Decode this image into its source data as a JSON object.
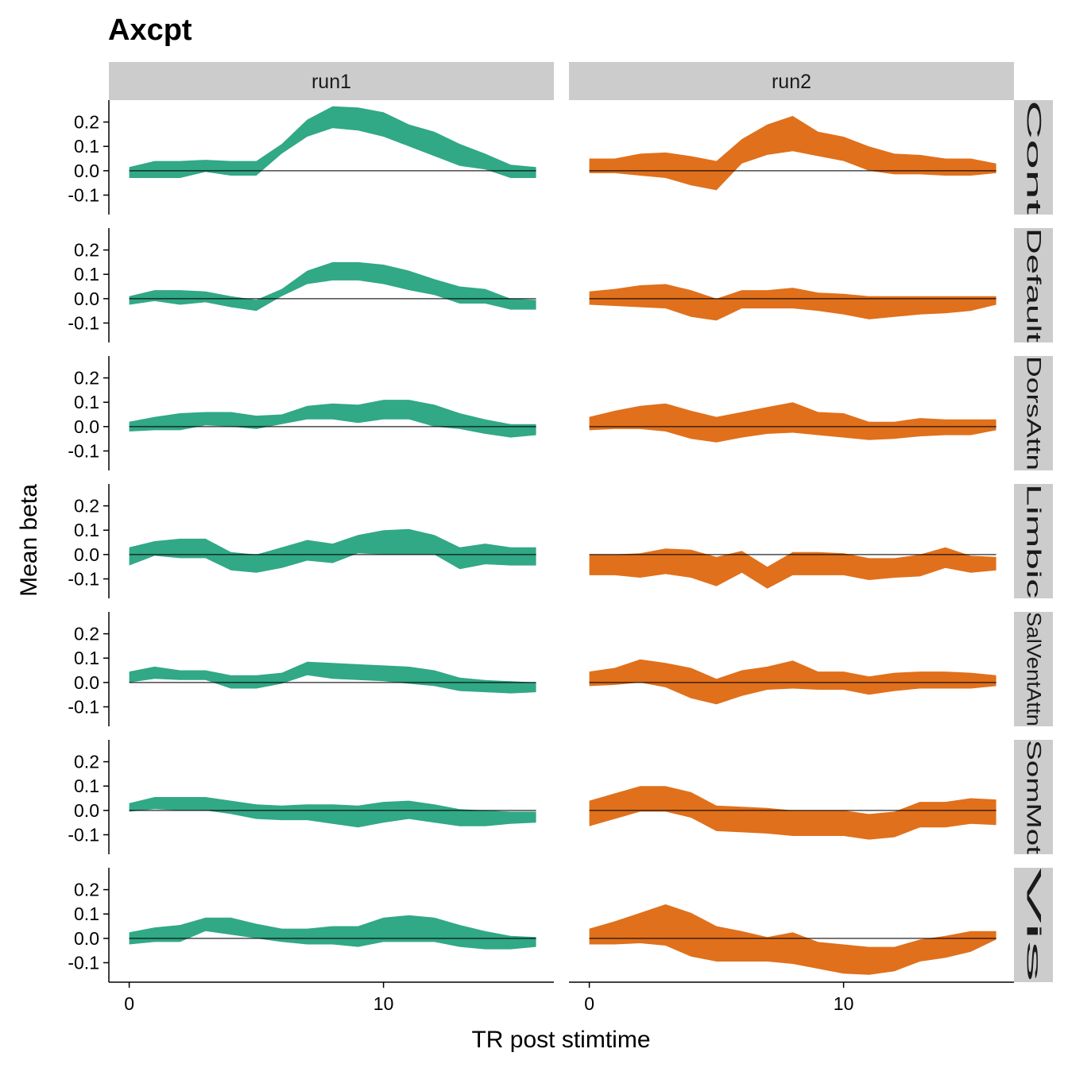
{
  "chart_data": {
    "type": "area",
    "title": "Axcpt",
    "xlabel": "TR post stimtime",
    "ylabel": "Mean beta",
    "x": [
      0,
      1,
      2,
      3,
      4,
      5,
      6,
      7,
      8,
      9,
      10,
      11,
      12,
      13,
      14,
      15,
      16
    ],
    "xlim": [
      -0.8,
      16.7
    ],
    "ylim": [
      -0.18,
      0.29
    ],
    "x_ticks": [
      0,
      10
    ],
    "x_tick_labels": [
      "0",
      "10"
    ],
    "y_ticks": [
      -0.1,
      0.0,
      0.1,
      0.2
    ],
    "y_tick_labels": [
      "-0.1",
      "0.0",
      "0.1",
      "0.2"
    ],
    "reference_line": 0,
    "columns": [
      "run1",
      "run2"
    ],
    "rows": [
      "Cont",
      "Default",
      "DorsAttn",
      "Limbic",
      "SalVentAttn",
      "SomMot",
      "Vis"
    ],
    "colors": {
      "run1": "#31a886",
      "run2": "#e0701b",
      "strip": "#cccccc"
    },
    "panels": [
      {
        "row": "Cont",
        "column": "run1",
        "upper": [
          0.015,
          0.04,
          0.04,
          0.045,
          0.04,
          0.04,
          0.11,
          0.21,
          0.265,
          0.26,
          0.24,
          0.19,
          0.16,
          0.11,
          0.07,
          0.025,
          0.015
        ],
        "lower": [
          -0.03,
          -0.03,
          -0.03,
          -0.005,
          -0.02,
          -0.02,
          0.07,
          0.14,
          0.175,
          0.165,
          0.14,
          0.1,
          0.06,
          0.02,
          0.005,
          -0.03,
          -0.03
        ]
      },
      {
        "row": "Cont",
        "column": "run2",
        "upper": [
          0.05,
          0.05,
          0.07,
          0.075,
          0.06,
          0.04,
          0.13,
          0.19,
          0.225,
          0.16,
          0.14,
          0.1,
          0.07,
          0.065,
          0.05,
          0.05,
          0.03
        ],
        "lower": [
          -0.01,
          -0.01,
          -0.02,
          -0.03,
          -0.06,
          -0.08,
          0.03,
          0.065,
          0.08,
          0.06,
          0.04,
          0.0,
          -0.015,
          -0.015,
          -0.02,
          -0.02,
          -0.01
        ]
      },
      {
        "row": "Default",
        "column": "run1",
        "upper": [
          0.01,
          0.035,
          0.035,
          0.03,
          0.01,
          -0.005,
          0.04,
          0.115,
          0.15,
          0.15,
          0.14,
          0.115,
          0.08,
          0.05,
          0.04,
          0.0,
          -0.005
        ],
        "lower": [
          -0.025,
          -0.01,
          -0.025,
          -0.015,
          -0.035,
          -0.05,
          0.01,
          0.06,
          0.075,
          0.075,
          0.06,
          0.035,
          0.015,
          -0.02,
          -0.02,
          -0.045,
          -0.045
        ]
      },
      {
        "row": "Default",
        "column": "run2",
        "upper": [
          0.03,
          0.04,
          0.055,
          0.06,
          0.035,
          0.0,
          0.035,
          0.035,
          0.045,
          0.025,
          0.02,
          0.01,
          0.01,
          0.01,
          0.01,
          0.01,
          0.01
        ],
        "lower": [
          -0.025,
          -0.03,
          -0.035,
          -0.04,
          -0.075,
          -0.09,
          -0.04,
          -0.04,
          -0.04,
          -0.05,
          -0.065,
          -0.085,
          -0.075,
          -0.065,
          -0.06,
          -0.05,
          -0.025
        ]
      },
      {
        "row": "DorsAttn",
        "column": "run1",
        "upper": [
          0.02,
          0.04,
          0.055,
          0.06,
          0.06,
          0.045,
          0.05,
          0.085,
          0.095,
          0.09,
          0.11,
          0.11,
          0.09,
          0.055,
          0.03,
          0.01,
          0.01
        ],
        "lower": [
          -0.02,
          -0.015,
          -0.015,
          0.005,
          0.0,
          -0.01,
          0.01,
          0.03,
          0.03,
          0.015,
          0.03,
          0.03,
          0.0,
          -0.01,
          -0.03,
          -0.045,
          -0.035
        ]
      },
      {
        "row": "DorsAttn",
        "column": "run2",
        "upper": [
          0.04,
          0.065,
          0.085,
          0.095,
          0.065,
          0.04,
          0.06,
          0.08,
          0.1,
          0.06,
          0.055,
          0.02,
          0.02,
          0.035,
          0.03,
          0.03,
          0.03
        ],
        "lower": [
          -0.015,
          -0.01,
          -0.01,
          -0.02,
          -0.05,
          -0.065,
          -0.045,
          -0.03,
          -0.025,
          -0.035,
          -0.045,
          -0.055,
          -0.05,
          -0.04,
          -0.035,
          -0.035,
          -0.015
        ]
      },
      {
        "row": "Limbic",
        "column": "run1",
        "upper": [
          0.03,
          0.055,
          0.065,
          0.065,
          0.01,
          0.0,
          0.03,
          0.06,
          0.045,
          0.08,
          0.1,
          0.105,
          0.08,
          0.03,
          0.045,
          0.03,
          0.03
        ],
        "lower": [
          -0.045,
          -0.005,
          -0.015,
          -0.015,
          -0.065,
          -0.075,
          -0.055,
          -0.025,
          -0.035,
          0.005,
          0.0,
          0.0,
          0.0,
          -0.06,
          -0.04,
          -0.045,
          -0.045
        ]
      },
      {
        "row": "Limbic",
        "column": "run2",
        "upper": [
          0.0,
          0.0,
          0.005,
          0.025,
          0.02,
          -0.01,
          0.015,
          -0.05,
          0.01,
          0.01,
          0.005,
          -0.015,
          -0.015,
          0.0,
          0.03,
          -0.005,
          -0.01
        ],
        "lower": [
          -0.085,
          -0.085,
          -0.095,
          -0.08,
          -0.095,
          -0.13,
          -0.075,
          -0.14,
          -0.085,
          -0.085,
          -0.085,
          -0.105,
          -0.095,
          -0.09,
          -0.055,
          -0.075,
          -0.065
        ]
      },
      {
        "row": "SalVentAttn",
        "column": "run1",
        "upper": [
          0.045,
          0.065,
          0.05,
          0.05,
          0.03,
          0.03,
          0.04,
          0.085,
          0.08,
          0.075,
          0.07,
          0.065,
          0.05,
          0.02,
          0.01,
          0.005,
          0.0
        ],
        "lower": [
          0.0,
          0.015,
          0.01,
          0.01,
          -0.025,
          -0.025,
          -0.005,
          0.03,
          0.015,
          0.01,
          0.005,
          -0.005,
          -0.015,
          -0.035,
          -0.04,
          -0.045,
          -0.04
        ]
      },
      {
        "row": "SalVentAttn",
        "column": "run2",
        "upper": [
          0.045,
          0.06,
          0.095,
          0.08,
          0.06,
          0.015,
          0.05,
          0.065,
          0.09,
          0.045,
          0.045,
          0.025,
          0.04,
          0.045,
          0.045,
          0.04,
          0.03
        ],
        "lower": [
          -0.015,
          -0.01,
          0.0,
          -0.02,
          -0.065,
          -0.09,
          -0.055,
          -0.03,
          -0.025,
          -0.03,
          -0.03,
          -0.05,
          -0.035,
          -0.025,
          -0.025,
          -0.025,
          -0.015
        ]
      },
      {
        "row": "SomMot",
        "column": "run1",
        "upper": [
          0.03,
          0.055,
          0.055,
          0.055,
          0.04,
          0.025,
          0.02,
          0.025,
          0.025,
          0.02,
          0.035,
          0.04,
          0.025,
          0.005,
          0.0,
          -0.005,
          -0.005
        ],
        "lower": [
          -0.005,
          0.005,
          0.0,
          0.0,
          -0.015,
          -0.035,
          -0.04,
          -0.04,
          -0.055,
          -0.07,
          -0.05,
          -0.035,
          -0.05,
          -0.065,
          -0.065,
          -0.055,
          -0.05
        ]
      },
      {
        "row": "SomMot",
        "column": "run2",
        "upper": [
          0.04,
          0.07,
          0.1,
          0.1,
          0.075,
          0.02,
          0.015,
          0.01,
          0.0,
          0.0,
          0.0,
          -0.015,
          -0.005,
          0.035,
          0.035,
          0.05,
          0.045
        ]
      },
      {
        "row": "Vis",
        "column": "run1",
        "upper": [
          0.025,
          0.045,
          0.055,
          0.085,
          0.085,
          0.06,
          0.04,
          0.04,
          0.05,
          0.05,
          0.085,
          0.095,
          0.085,
          0.055,
          0.03,
          0.01,
          0.005
        ],
        "lower": [
          -0.025,
          -0.015,
          -0.015,
          0.03,
          0.015,
          0.0,
          -0.015,
          -0.025,
          -0.025,
          -0.035,
          -0.015,
          -0.015,
          -0.015,
          -0.035,
          -0.045,
          -0.045,
          -0.035
        ]
      },
      {
        "row": "Vis",
        "column": "run2",
        "upper": [
          0.04,
          0.07,
          0.105,
          0.14,
          0.105,
          0.05,
          0.03,
          0.005,
          0.025,
          -0.015,
          -0.025,
          -0.035,
          -0.035,
          -0.005,
          0.01,
          0.03,
          0.03
        ],
        "lower": [
          -0.025,
          -0.025,
          -0.02,
          -0.03,
          -0.075,
          -0.095,
          -0.095,
          -0.095,
          -0.105,
          -0.125,
          -0.145,
          -0.15,
          -0.135,
          -0.095,
          -0.08,
          -0.055,
          -0.005
        ]
      }
    ]
  }
}
